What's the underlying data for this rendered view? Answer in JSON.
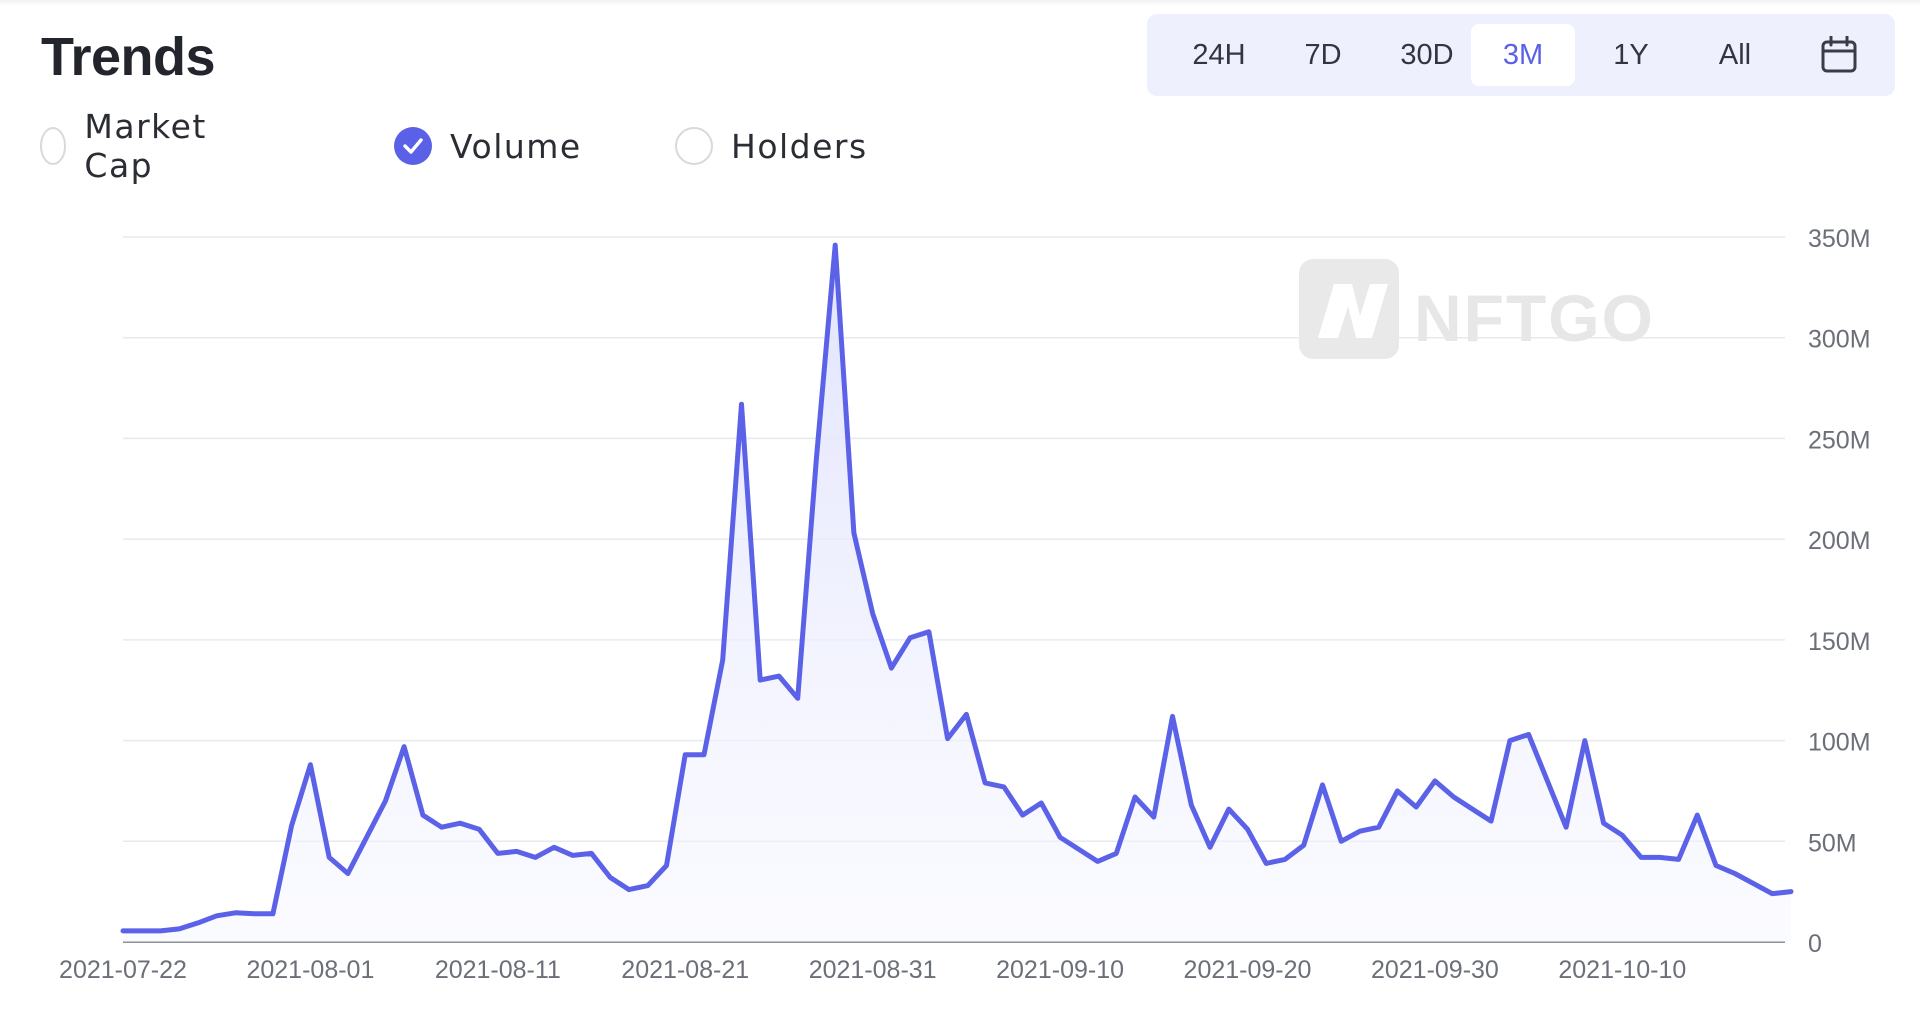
{
  "title": "Trends",
  "time_ranges": [
    "24H",
    "7D",
    "30D",
    "3M",
    "1Y",
    "All"
  ],
  "active_range": "3M",
  "calendar_icon": "calendar-icon",
  "metrics": [
    {
      "label": "Market Cap",
      "checked": false
    },
    {
      "label": "Volume",
      "checked": true
    },
    {
      "label": "Holders",
      "checked": false
    }
  ],
  "watermark": "NFTGO",
  "colors": {
    "accent": "#5a61e6",
    "line": "#5b62e8",
    "area_fill": "#eceefe",
    "grid": "#e6e9ef",
    "axis_text": "#6b6f78"
  },
  "chart_data": {
    "type": "area",
    "title": "",
    "xlabel": "",
    "ylabel": "",
    "series": [
      {
        "values": [
          5.5,
          5.5,
          5.5,
          6.5,
          9.5,
          13,
          14.5,
          14,
          14,
          58,
          88,
          42,
          34,
          52,
          70,
          97,
          63,
          57,
          59,
          56,
          44,
          45,
          42,
          47,
          43,
          44,
          32,
          26,
          28,
          38,
          93,
          93,
          140,
          267,
          130,
          132,
          121,
          240,
          346,
          203,
          163,
          136,
          151,
          154,
          101,
          113,
          79,
          77,
          63,
          69,
          52,
          46,
          40,
          44,
          72,
          62,
          112,
          68,
          47,
          66,
          56,
          39,
          41,
          48,
          78,
          50,
          55,
          57,
          75,
          67,
          80,
          72,
          66,
          60,
          100,
          103,
          80,
          57,
          100,
          59,
          53,
          42,
          42,
          41,
          63,
          38,
          34,
          29,
          24,
          25
        ]
      }
    ],
    "x_start": "2021-07-22",
    "x_end": "2021-10-19",
    "x_ticks": [
      "2021-07-22",
      "2021-08-01",
      "2021-08-11",
      "2021-08-21",
      "2021-08-31",
      "2021-09-10",
      "2021-09-20",
      "2021-09-30",
      "2021-10-10"
    ],
    "y_ticks": [
      "0",
      "50M",
      "100M",
      "150M",
      "200M",
      "250M",
      "300M",
      "350M"
    ],
    "y_unit": "M",
    "ylim": [
      0,
      350
    ],
    "grid": true,
    "legend": false
  }
}
